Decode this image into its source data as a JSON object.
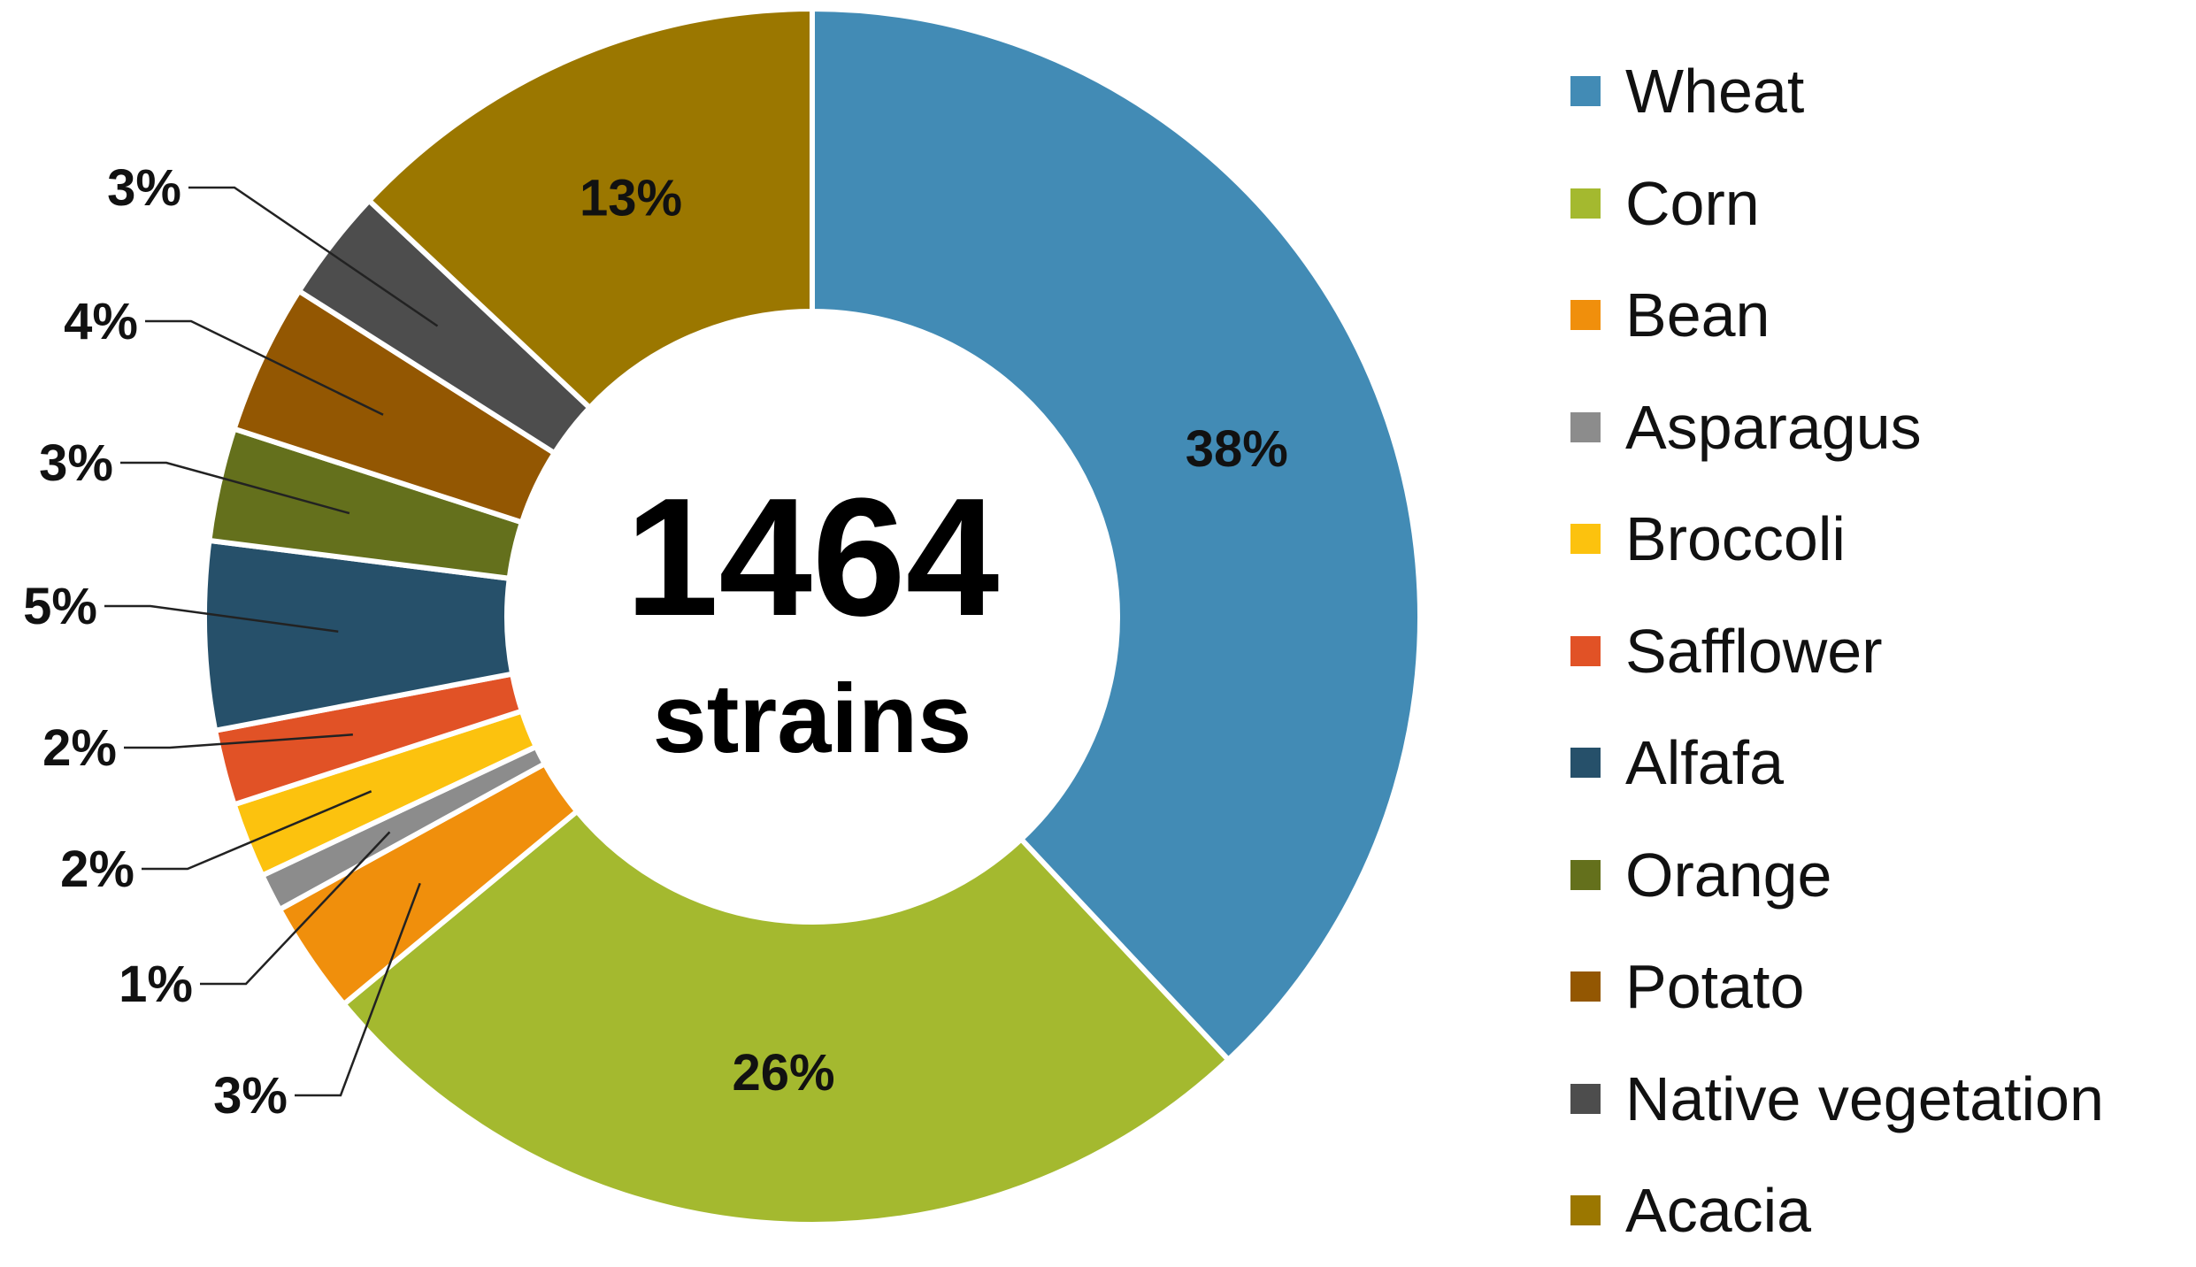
{
  "chart_data": {
    "type": "pie",
    "style": "donut",
    "center_text": {
      "count": "1464",
      "unit": "strains"
    },
    "legend_position": "right",
    "series": [
      {
        "name": "Wheat",
        "value": 38,
        "label": "38%",
        "color": "#428bb5",
        "label_placement": "inside"
      },
      {
        "name": "Corn",
        "value": 26,
        "label": "26%",
        "color": "#a4b92f",
        "label_placement": "inside"
      },
      {
        "name": "Bean",
        "value": 3,
        "label": "3%",
        "color": "#f08f0c",
        "label_placement": "outside"
      },
      {
        "name": "Asparagus",
        "value": 1,
        "label": "1%",
        "color": "#8c8c8c",
        "label_placement": "outside"
      },
      {
        "name": "Broccoli",
        "value": 2,
        "label": "2%",
        "color": "#fcc20e",
        "label_placement": "outside"
      },
      {
        "name": "Safflower",
        "value": 2,
        "label": "2%",
        "color": "#e15226",
        "label_placement": "outside"
      },
      {
        "name": "Alfafa",
        "value": 5,
        "label": "5%",
        "color": "#26506a",
        "label_placement": "outside"
      },
      {
        "name": "Orange",
        "value": 3,
        "label": "3%",
        "color": "#64701c",
        "label_placement": "outside"
      },
      {
        "name": "Potato",
        "value": 4,
        "label": "4%",
        "color": "#935702",
        "label_placement": "outside"
      },
      {
        "name": "Native vegetation",
        "value": 3,
        "label": "3%",
        "color": "#4d4d4d",
        "label_placement": "outside"
      },
      {
        "name": "Acacia",
        "value": 13,
        "label": "13%",
        "color": "#9b7700",
        "label_placement": "inside"
      }
    ]
  }
}
